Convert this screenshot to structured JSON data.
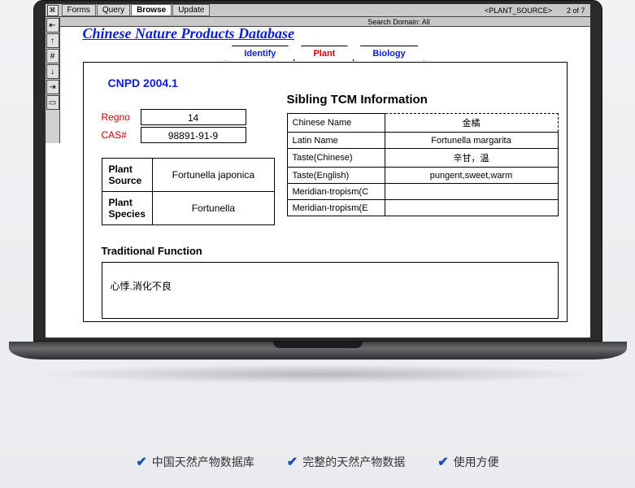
{
  "menubar": {
    "items": [
      "Forms",
      "Query",
      "Browse",
      "Update"
    ],
    "active_index": 2,
    "source_label": "<PLANT_SOURCE>",
    "search_domain": "Search Domain:  All",
    "page_indicator": "2  of 7"
  },
  "toolbar": {
    "icons": [
      "⇤",
      "↑",
      "#",
      "↓",
      "⇥",
      "▭"
    ]
  },
  "db_title": "Chinese Nature Products Database",
  "tabs": {
    "items": [
      "Identify",
      "Plant",
      "Biology"
    ],
    "active_index": 1
  },
  "version": "CNPD  2004.1",
  "ids": {
    "regno_label": "Regno",
    "regno_value": "14",
    "cas_label": "CAS#",
    "cas_value": "98891-91-9"
  },
  "plant_table": {
    "source_label": "Plant Source",
    "source_value": "Fortunella japonica",
    "species_label": "Plant Species",
    "species_value": "Fortunella"
  },
  "sibling": {
    "title": "Sibling TCM Information",
    "rows": [
      {
        "label": "Chinese Name",
        "value": "金橘"
      },
      {
        "label": "Latin Name",
        "value": "Fortunella margarita"
      },
      {
        "label": "Taste(Chinese)",
        "value": "辛甘，温"
      },
      {
        "label": "Taste(English)",
        "value": "pungent,sweet,warm"
      },
      {
        "label": "Meridian-tropism(C",
        "value": ""
      },
      {
        "label": "Meridian-tropism(E",
        "value": ""
      }
    ]
  },
  "traditional": {
    "title": "Traditional Function",
    "text": "心悸.消化不良"
  },
  "features": [
    "中国天然产物数据库",
    "完整的天然产物数据",
    "使用方便"
  ],
  "colors": {
    "link_blue": "#1020c8",
    "active_red": "#d00000",
    "field_red": "#c00000",
    "bg_top": "#f1f2f4",
    "bg_bottom": "#eaebee"
  }
}
